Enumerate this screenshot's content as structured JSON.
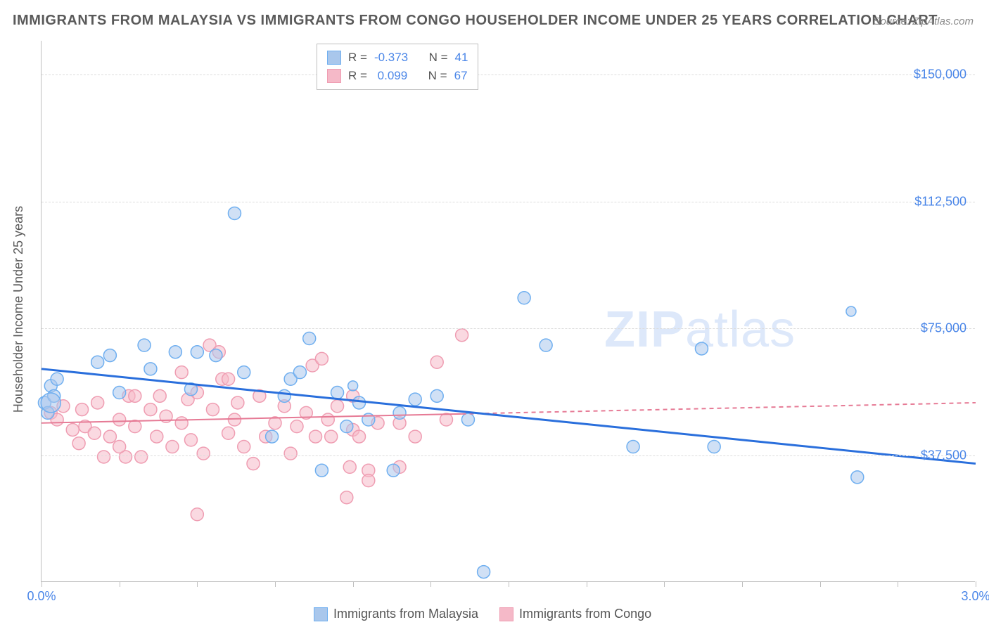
{
  "title": "IMMIGRANTS FROM MALAYSIA VS IMMIGRANTS FROM CONGO HOUSEHOLDER INCOME UNDER 25 YEARS CORRELATION CHART",
  "source": "Source: ZipAtlas.com",
  "y_axis_label": "Householder Income Under 25 years",
  "watermark_zip": "ZIP",
  "watermark_atlas": "atlas",
  "chart": {
    "type": "scatter",
    "xlim": [
      0.0,
      3.0
    ],
    "ylim": [
      0,
      160000
    ],
    "x_ticks": [
      0.0,
      0.25,
      0.5,
      0.75,
      1.0,
      1.25,
      1.5,
      1.75,
      2.0,
      2.25,
      2.5,
      2.75,
      3.0
    ],
    "x_tick_labels": {
      "0": "0.0%",
      "12": "3.0%"
    },
    "y_gridlines": [
      37500,
      75000,
      112500,
      150000
    ],
    "y_tick_labels": [
      "$37,500",
      "$75,000",
      "$112,500",
      "$150,000"
    ],
    "background_color": "#ffffff",
    "grid_color": "#dcdcdc",
    "axis_color": "#bfbfbf",
    "tick_label_color": "#4a86e8",
    "series": [
      {
        "name": "Immigrants from Malaysia",
        "fill": "#a9c7ec",
        "stroke": "#6faff0",
        "fill_opacity": 0.55,
        "marker_r": 9,
        "R": "-0.373",
        "N": "41",
        "regression": {
          "x1": 0.0,
          "y1": 63000,
          "x2": 3.0,
          "y2": 35000,
          "color": "#2a6fdc",
          "width": 3,
          "dash_after_x": null
        },
        "points": [
          [
            0.01,
            53000
          ],
          [
            0.02,
            50000
          ],
          [
            0.03,
            58000
          ],
          [
            0.04,
            55000
          ],
          [
            0.05,
            60000
          ],
          [
            0.18,
            65000
          ],
          [
            0.22,
            67000
          ],
          [
            0.25,
            56000
          ],
          [
            0.33,
            70000
          ],
          [
            0.35,
            63000
          ],
          [
            0.43,
            68000
          ],
          [
            0.48,
            57000
          ],
          [
            0.5,
            68000
          ],
          [
            0.56,
            67000
          ],
          [
            0.62,
            109000
          ],
          [
            0.65,
            62000
          ],
          [
            0.74,
            43000
          ],
          [
            0.78,
            55000
          ],
          [
            0.8,
            60000
          ],
          [
            0.83,
            62000
          ],
          [
            0.86,
            72000
          ],
          [
            0.9,
            33000
          ],
          [
            0.95,
            56000
          ],
          [
            0.98,
            46000
          ],
          [
            1.02,
            53000
          ],
          [
            1.05,
            48000
          ],
          [
            1.13,
            33000
          ],
          [
            1.15,
            50000
          ],
          [
            1.2,
            54000
          ],
          [
            1.27,
            55000
          ],
          [
            1.37,
            48000
          ],
          [
            1.42,
            3000
          ],
          [
            1.55,
            84000
          ],
          [
            1.62,
            70000
          ],
          [
            1.9,
            40000
          ],
          [
            2.12,
            69000
          ],
          [
            2.16,
            40000
          ],
          [
            2.62,
            31000
          ],
          [
            2.6,
            80000,
            7
          ],
          [
            1.0,
            58000,
            7
          ],
          [
            0.03,
            53000,
            14
          ]
        ]
      },
      {
        "name": "Immigrants from Congo",
        "fill": "#f5b9c8",
        "stroke": "#ef9db2",
        "fill_opacity": 0.55,
        "marker_r": 9,
        "R": "0.099",
        "N": "67",
        "regression": {
          "x1": 0.0,
          "y1": 47000,
          "x2": 3.0,
          "y2": 53000,
          "color": "#e67a95",
          "width": 2,
          "dash_after_x": 1.35
        },
        "points": [
          [
            0.03,
            50000
          ],
          [
            0.05,
            48000
          ],
          [
            0.07,
            52000
          ],
          [
            0.1,
            45000
          ],
          [
            0.12,
            41000
          ],
          [
            0.13,
            51000
          ],
          [
            0.14,
            46000
          ],
          [
            0.17,
            44000
          ],
          [
            0.18,
            53000
          ],
          [
            0.2,
            37000
          ],
          [
            0.22,
            43000
          ],
          [
            0.25,
            48000
          ],
          [
            0.27,
            37000
          ],
          [
            0.28,
            55000
          ],
          [
            0.3,
            46000
          ],
          [
            0.32,
            37000
          ],
          [
            0.35,
            51000
          ],
          [
            0.37,
            43000
          ],
          [
            0.38,
            55000
          ],
          [
            0.4,
            49000
          ],
          [
            0.42,
            40000
          ],
          [
            0.45,
            47000
          ],
          [
            0.47,
            54000
          ],
          [
            0.48,
            42000
          ],
          [
            0.5,
            56000
          ],
          [
            0.52,
            38000
          ],
          [
            0.54,
            70000
          ],
          [
            0.55,
            51000
          ],
          [
            0.57,
            68000
          ],
          [
            0.58,
            60000
          ],
          [
            0.6,
            44000
          ],
          [
            0.62,
            48000
          ],
          [
            0.63,
            53000
          ],
          [
            0.65,
            40000
          ],
          [
            0.68,
            35000
          ],
          [
            0.7,
            55000
          ],
          [
            0.72,
            43000
          ],
          [
            0.75,
            47000
          ],
          [
            0.78,
            52000
          ],
          [
            0.8,
            38000
          ],
          [
            0.82,
            46000
          ],
          [
            0.85,
            50000
          ],
          [
            0.87,
            64000
          ],
          [
            0.88,
            43000
          ],
          [
            0.9,
            66000
          ],
          [
            0.92,
            48000
          ],
          [
            0.93,
            43000
          ],
          [
            0.95,
            52000
          ],
          [
            0.98,
            25000
          ],
          [
            0.99,
            34000
          ],
          [
            1.0,
            55000
          ],
          [
            1.0,
            45000
          ],
          [
            1.02,
            43000
          ],
          [
            1.05,
            33000
          ],
          [
            1.05,
            30000
          ],
          [
            1.08,
            47000
          ],
          [
            1.15,
            34000
          ],
          [
            1.15,
            47000
          ],
          [
            1.2,
            43000
          ],
          [
            1.27,
            65000
          ],
          [
            1.3,
            48000
          ],
          [
            1.35,
            73000
          ],
          [
            0.5,
            20000
          ],
          [
            0.3,
            55000
          ],
          [
            0.45,
            62000
          ],
          [
            0.6,
            60000
          ],
          [
            0.25,
            40000
          ]
        ]
      }
    ]
  },
  "legend_top": {
    "r_label": "R =",
    "n_label": "N ="
  },
  "legend_bottom": {
    "series1": "Immigrants from Malaysia",
    "series2": "Immigrants from Congo"
  }
}
